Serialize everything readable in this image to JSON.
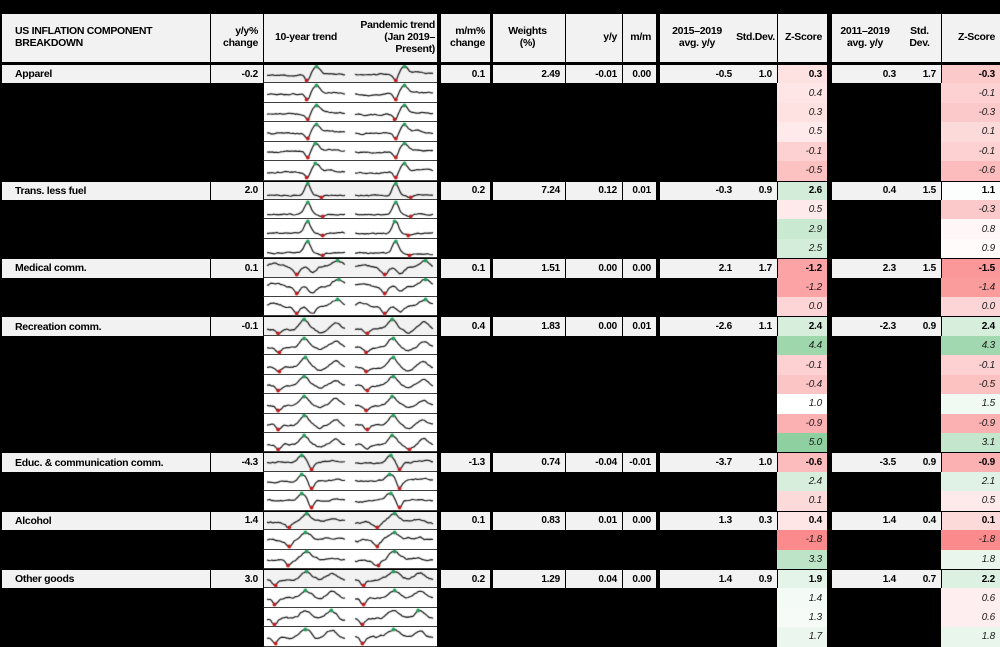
{
  "header": {
    "col_component": "US INFLATION COMPONENT BREAKDOWN",
    "col_yoy_change": "y/y%\nchange",
    "col_trend10": "10-year trend",
    "col_pandemic": "Pandemic trend\n(Jan 2019–Present)",
    "col_mom_change": "m/m%\nchange",
    "col_weights": "Weights\n(%)",
    "col_yoy": "y/y",
    "col_mom": "m/m",
    "col_avg_2015_2019": "2015–2019\navg. y/y",
    "col_std_1": "Std.Dev.",
    "col_z_1": "Z-Score",
    "col_avg_2011_2019": "2011–2019\navg. y/y",
    "col_std_2": "Std. Dev.",
    "col_z_2": "Z-Score"
  },
  "color_scale": {
    "z_negative": "#f8696b",
    "z_positive": "#63be7b",
    "z_neutral": "#ffffff",
    "min_value": -2.6,
    "mid_value": 1.0,
    "max_value": 6.5,
    "row_bg": "#f2f2f2",
    "page_bg": "#000000",
    "spark_line": "#101010",
    "spark_high_marker": "#239e5a",
    "spark_low_marker": "#c41a1a"
  },
  "sections": [
    {
      "name": "Apparel",
      "yoy_change": "-0.2",
      "mom_change": "0.1",
      "weights": "2.49",
      "yoy": "-0.01",
      "mom": "0.00",
      "avg_2015_2019": "-0.5",
      "std_2015_2019": "1.0",
      "z_2015_2019": "0.3",
      "avg_2011_2019": "0.3",
      "std_2011_2019": "1.7",
      "z_2011_2019": "-0.3",
      "spark": "apparel",
      "sub_z": [
        [
          "0.4",
          "-0.1"
        ],
        [
          "0.3",
          "-0.3"
        ],
        [
          "0.5",
          "0.1"
        ],
        [
          "-0.1",
          "-0.1"
        ],
        [
          "-0.5",
          "-0.6"
        ]
      ]
    },
    {
      "name": "Trans. less fuel",
      "yoy_change": "2.0",
      "mom_change": "0.2",
      "weights": "7.24",
      "yoy": "0.12",
      "mom": "0.01",
      "avg_2015_2019": "-0.3",
      "std_2015_2019": "0.9",
      "z_2015_2019": "2.6",
      "avg_2011_2019": "0.4",
      "std_2011_2019": "1.5",
      "z_2011_2019": "1.1",
      "spark": "transfuel",
      "sub_z": [
        [
          "0.5",
          "-0.3"
        ],
        [
          "2.9",
          "0.8"
        ],
        [
          "2.5",
          "0.9"
        ]
      ]
    },
    {
      "name": "Medical comm.",
      "yoy_change": "0.1",
      "mom_change": "0.1",
      "weights": "1.51",
      "yoy": "0.00",
      "mom": "0.00",
      "avg_2015_2019": "2.1",
      "std_2015_2019": "1.7",
      "z_2015_2019": "-1.2",
      "avg_2011_2019": "2.3",
      "std_2011_2019": "1.5",
      "z_2011_2019": "-1.5",
      "spark": "medical",
      "sub_z": [
        [
          "-1.2",
          "-1.4"
        ],
        [
          "0.0",
          "0.0"
        ]
      ]
    },
    {
      "name": "Recreation comm.",
      "yoy_change": "-0.1",
      "mom_change": "0.4",
      "weights": "1.83",
      "yoy": "0.00",
      "mom": "0.01",
      "avg_2015_2019": "-2.6",
      "std_2015_2019": "1.1",
      "z_2015_2019": "2.4",
      "avg_2011_2019": "-2.3",
      "std_2011_2019": "0.9",
      "z_2011_2019": "2.4",
      "spark": "recreation",
      "sub_z": [
        [
          "4.4",
          "4.3"
        ],
        [
          "-0.1",
          "-0.1"
        ],
        [
          "-0.4",
          "-0.5"
        ],
        [
          "1.0",
          "1.5"
        ],
        [
          "-0.9",
          "-0.9"
        ],
        [
          "5.0",
          "3.1"
        ]
      ]
    },
    {
      "name": "Educ. & communication comm.",
      "yoy_change": "-4.3",
      "mom_change": "-1.3",
      "weights": "0.74",
      "yoy": "-0.04",
      "mom": "-0.01",
      "avg_2015_2019": "-3.7",
      "std_2015_2019": "1.0",
      "z_2015_2019": "-0.6",
      "avg_2011_2019": "-3.5",
      "std_2011_2019": "0.9",
      "z_2011_2019": "-0.9",
      "spark": "educ",
      "sub_z": [
        [
          "2.4",
          "2.1"
        ],
        [
          "0.1",
          "0.5"
        ]
      ]
    },
    {
      "name": "Alcohol",
      "yoy_change": "1.4",
      "mom_change": "0.1",
      "weights": "0.83",
      "yoy": "0.01",
      "mom": "0.00",
      "avg_2015_2019": "1.3",
      "std_2015_2019": "0.3",
      "z_2015_2019": "0.4",
      "avg_2011_2019": "1.4",
      "std_2011_2019": "0.4",
      "z_2011_2019": "0.1",
      "spark": "alcohol",
      "sub_z": [
        [
          "-1.8",
          "-1.8"
        ],
        [
          "3.3",
          "1.8"
        ]
      ]
    },
    {
      "name": "Other goods",
      "yoy_change": "3.0",
      "mom_change": "0.2",
      "weights": "1.29",
      "yoy": "0.04",
      "mom": "0.00",
      "avg_2015_2019": "1.4",
      "std_2015_2019": "0.9",
      "z_2015_2019": "1.9",
      "avg_2011_2019": "1.4",
      "std_2011_2019": "0.7",
      "z_2011_2019": "2.2",
      "spark": "othergoods",
      "sub_z": [
        [
          "1.4",
          "0.6"
        ],
        [
          "1.3",
          "0.6"
        ],
        [
          "1.7",
          "1.8"
        ]
      ]
    }
  ]
}
